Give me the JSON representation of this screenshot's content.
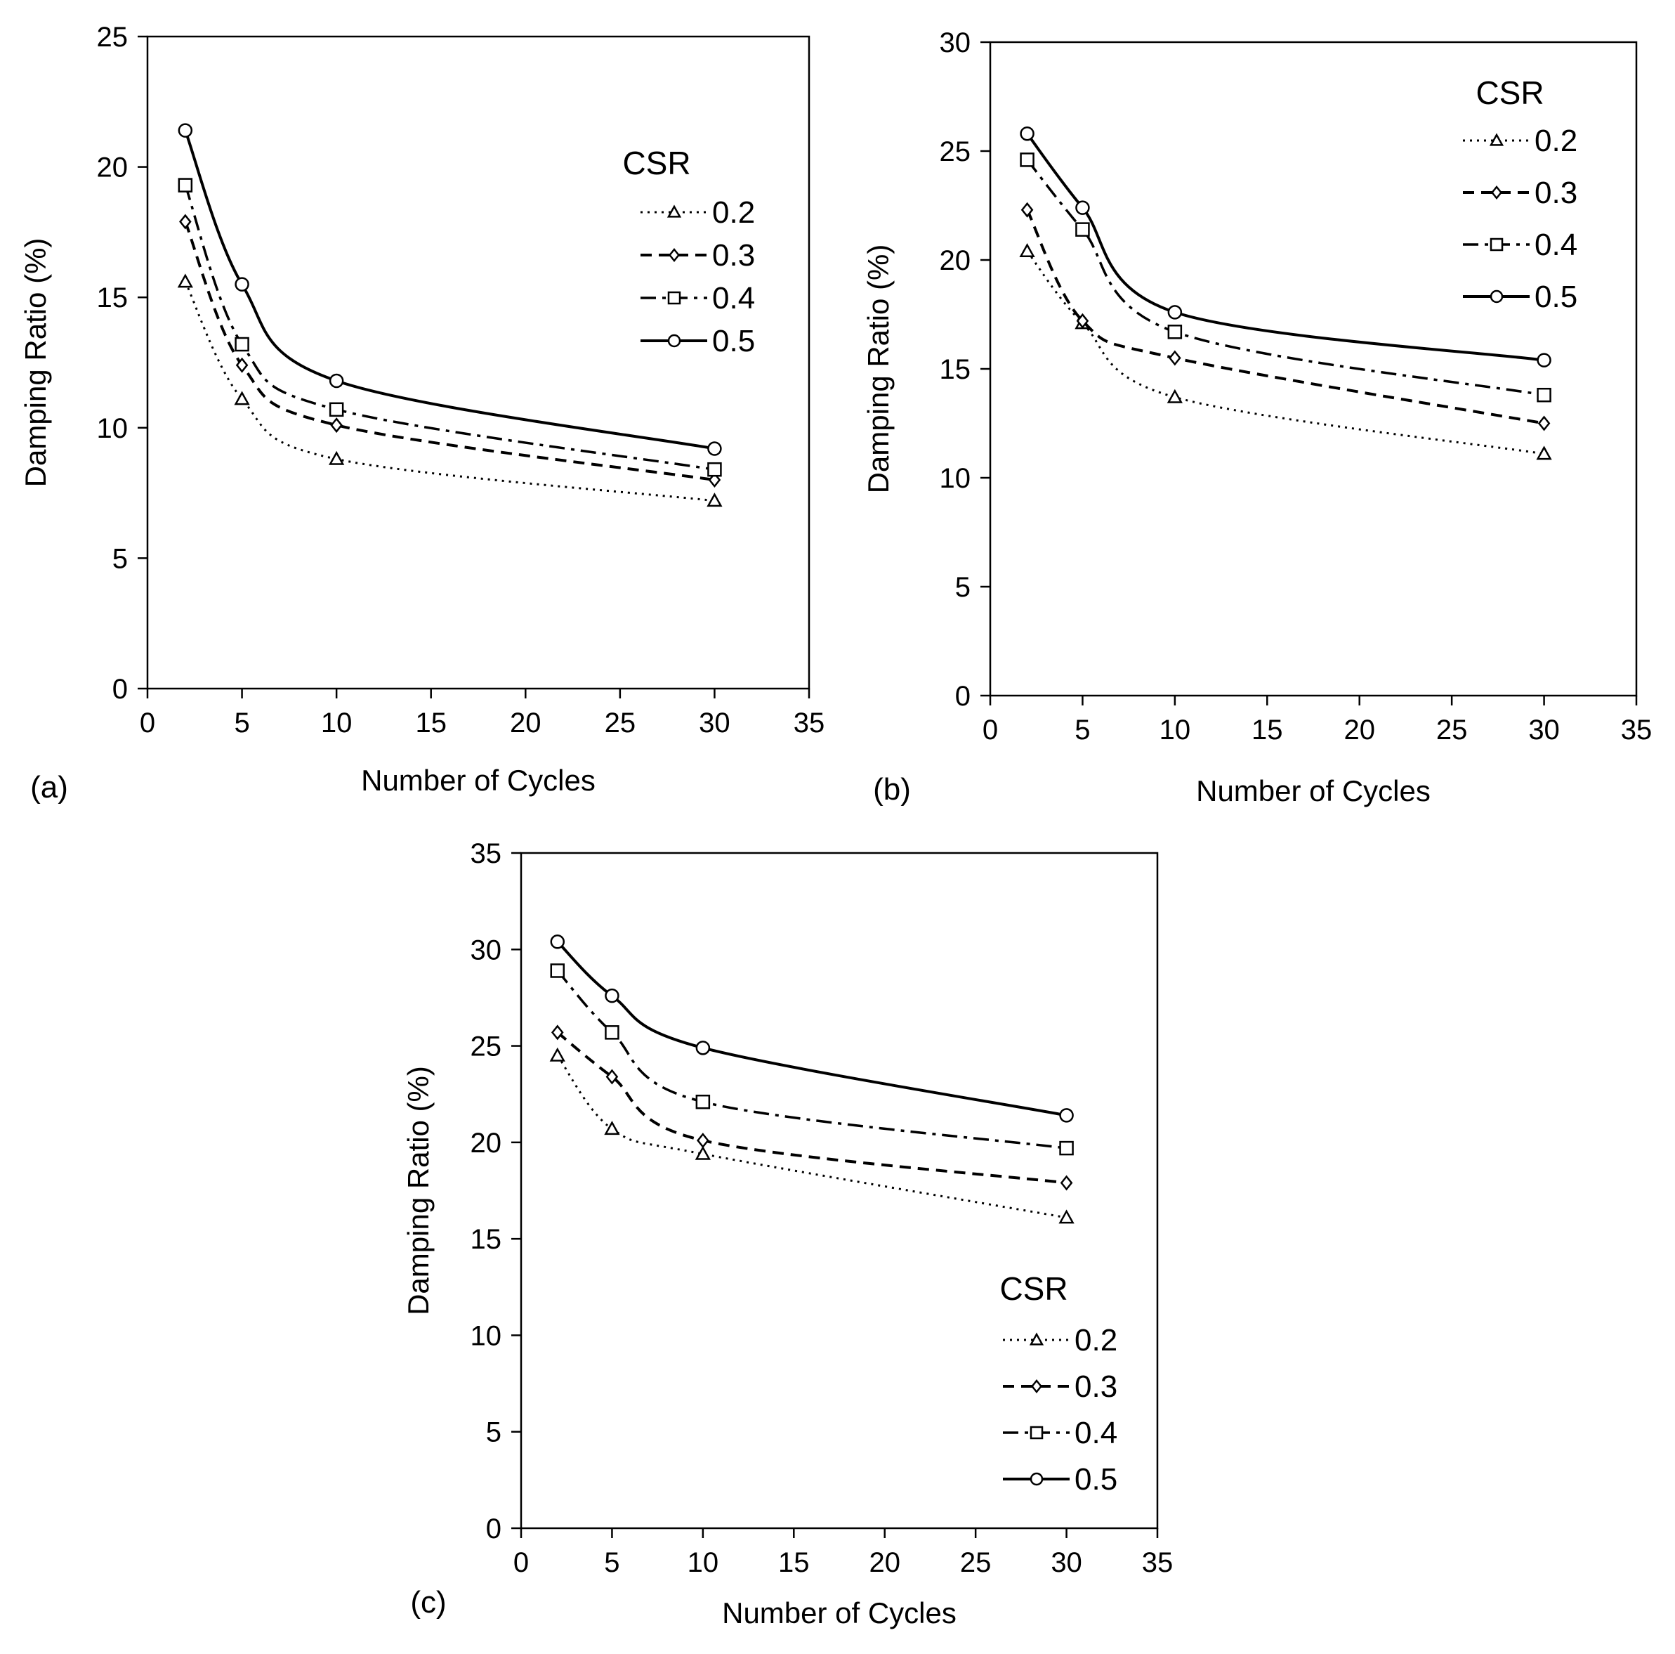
{
  "chart_data": [
    {
      "type": "line",
      "panel_label": "(a)",
      "xlabel": "Number of Cycles",
      "ylabel": "Damping Ratio (%)",
      "xlim": [
        0,
        35
      ],
      "ylim": [
        0,
        25
      ],
      "xticks": [
        0,
        5,
        10,
        15,
        20,
        25,
        30,
        35
      ],
      "yticks": [
        0,
        5,
        10,
        15,
        20,
        25
      ],
      "legend_title": "CSR",
      "legend_placement": "top-right",
      "x": [
        2,
        5,
        10,
        30
      ],
      "series": [
        {
          "name": "0.2",
          "values": [
            15.6,
            11.1,
            8.8,
            7.2
          ]
        },
        {
          "name": "0.3",
          "values": [
            17.9,
            12.4,
            10.1,
            8.0
          ]
        },
        {
          "name": "0.4",
          "values": [
            19.3,
            13.2,
            10.7,
            8.4
          ]
        },
        {
          "name": "0.5",
          "values": [
            21.4,
            15.5,
            11.8,
            9.2
          ]
        }
      ]
    },
    {
      "type": "line",
      "panel_label": "(b)",
      "xlabel": "Number of Cycles",
      "ylabel": "Damping Ratio (%)",
      "xlim": [
        0,
        35
      ],
      "ylim": [
        0,
        30
      ],
      "xticks": [
        0,
        5,
        10,
        15,
        20,
        25,
        30,
        35
      ],
      "yticks": [
        0,
        5,
        10,
        15,
        20,
        25,
        30
      ],
      "legend_title": "CSR",
      "legend_placement": "top-right",
      "x": [
        2,
        5,
        10,
        30
      ],
      "series": [
        {
          "name": "0.2",
          "values": [
            20.4,
            17.1,
            13.7,
            11.1
          ]
        },
        {
          "name": "0.3",
          "values": [
            22.3,
            17.2,
            15.5,
            12.5
          ]
        },
        {
          "name": "0.4",
          "values": [
            24.6,
            21.4,
            16.7,
            13.8
          ]
        },
        {
          "name": "0.5",
          "values": [
            25.8,
            22.4,
            17.6,
            15.4
          ]
        }
      ]
    },
    {
      "type": "line",
      "panel_label": "(c)",
      "xlabel": "Number of Cycles",
      "ylabel": "Damping Ratio (%)",
      "xlim": [
        0,
        35
      ],
      "ylim": [
        0,
        35
      ],
      "xticks": [
        0,
        5,
        10,
        15,
        20,
        25,
        30,
        35
      ],
      "yticks": [
        0,
        5,
        10,
        15,
        20,
        25,
        30,
        35
      ],
      "legend_title": "CSR",
      "legend_placement": "bottom-right",
      "x": [
        2,
        5,
        10,
        30
      ],
      "series": [
        {
          "name": "0.2",
          "values": [
            24.5,
            20.7,
            19.4,
            16.1
          ]
        },
        {
          "name": "0.3",
          "values": [
            25.7,
            23.4,
            20.1,
            17.9
          ]
        },
        {
          "name": "0.4",
          "values": [
            28.9,
            25.7,
            22.1,
            19.7
          ]
        },
        {
          "name": "0.5",
          "values": [
            30.4,
            27.6,
            24.9,
            21.4
          ]
        }
      ]
    }
  ]
}
